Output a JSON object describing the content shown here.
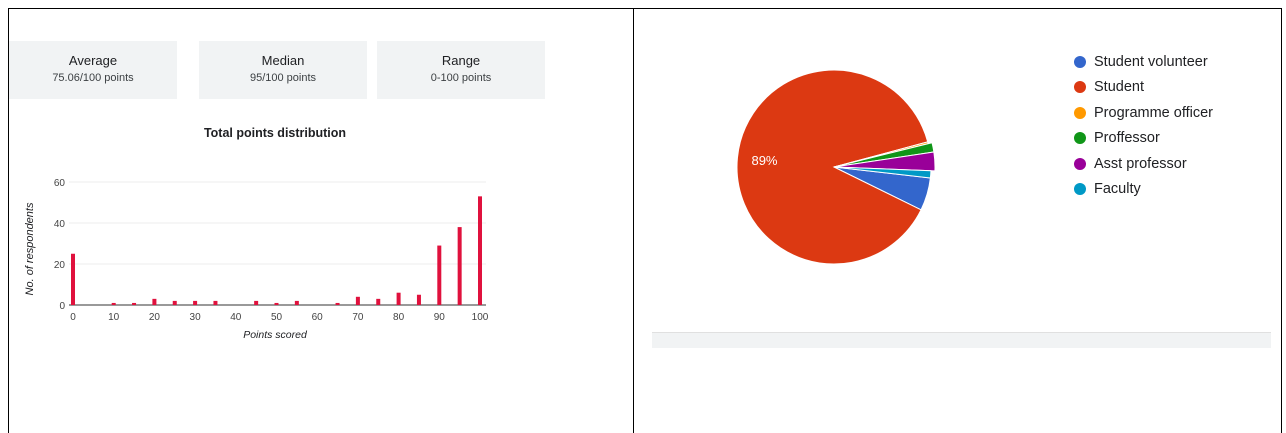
{
  "stats": [
    {
      "title": "Average",
      "value": "75.06/100 points"
    },
    {
      "title": "Median",
      "value": "95/100 points"
    },
    {
      "title": "Range",
      "value": "0-100 points"
    }
  ],
  "chart_data": [
    {
      "type": "bar",
      "title": "Total points distribution",
      "xlabel": "Points scored",
      "ylabel": "No. of respondents",
      "ylim": [
        0,
        60
      ],
      "yticks": [
        "0",
        "20",
        "40",
        "60"
      ],
      "xticks": [
        "0",
        "10",
        "20",
        "30",
        "40",
        "50",
        "60",
        "70",
        "80",
        "90",
        "100"
      ],
      "x": [
        0,
        10,
        15,
        20,
        25,
        30,
        35,
        45,
        50,
        55,
        65,
        70,
        75,
        80,
        85,
        90,
        95,
        100
      ],
      "values": [
        25,
        1,
        1,
        3,
        2,
        2,
        2,
        2,
        1,
        2,
        1,
        4,
        3,
        6,
        5,
        29,
        38,
        53
      ],
      "grid": true,
      "color": "#e0113d"
    },
    {
      "type": "pie",
      "legend_position": "right",
      "labels": [
        "Student volunteer",
        "Student",
        "Programme officer",
        "Proffessor",
        "Asst professor",
        "Faculty"
      ],
      "values": [
        5.5,
        89,
        0.3,
        1.5,
        3,
        1.2
      ],
      "colors": [
        "#3366cc",
        "#dc3912",
        "#ff9900",
        "#109618",
        "#990099",
        "#0099c6"
      ],
      "slice_labels": [
        "",
        "89%",
        "",
        "",
        "",
        ""
      ]
    }
  ]
}
